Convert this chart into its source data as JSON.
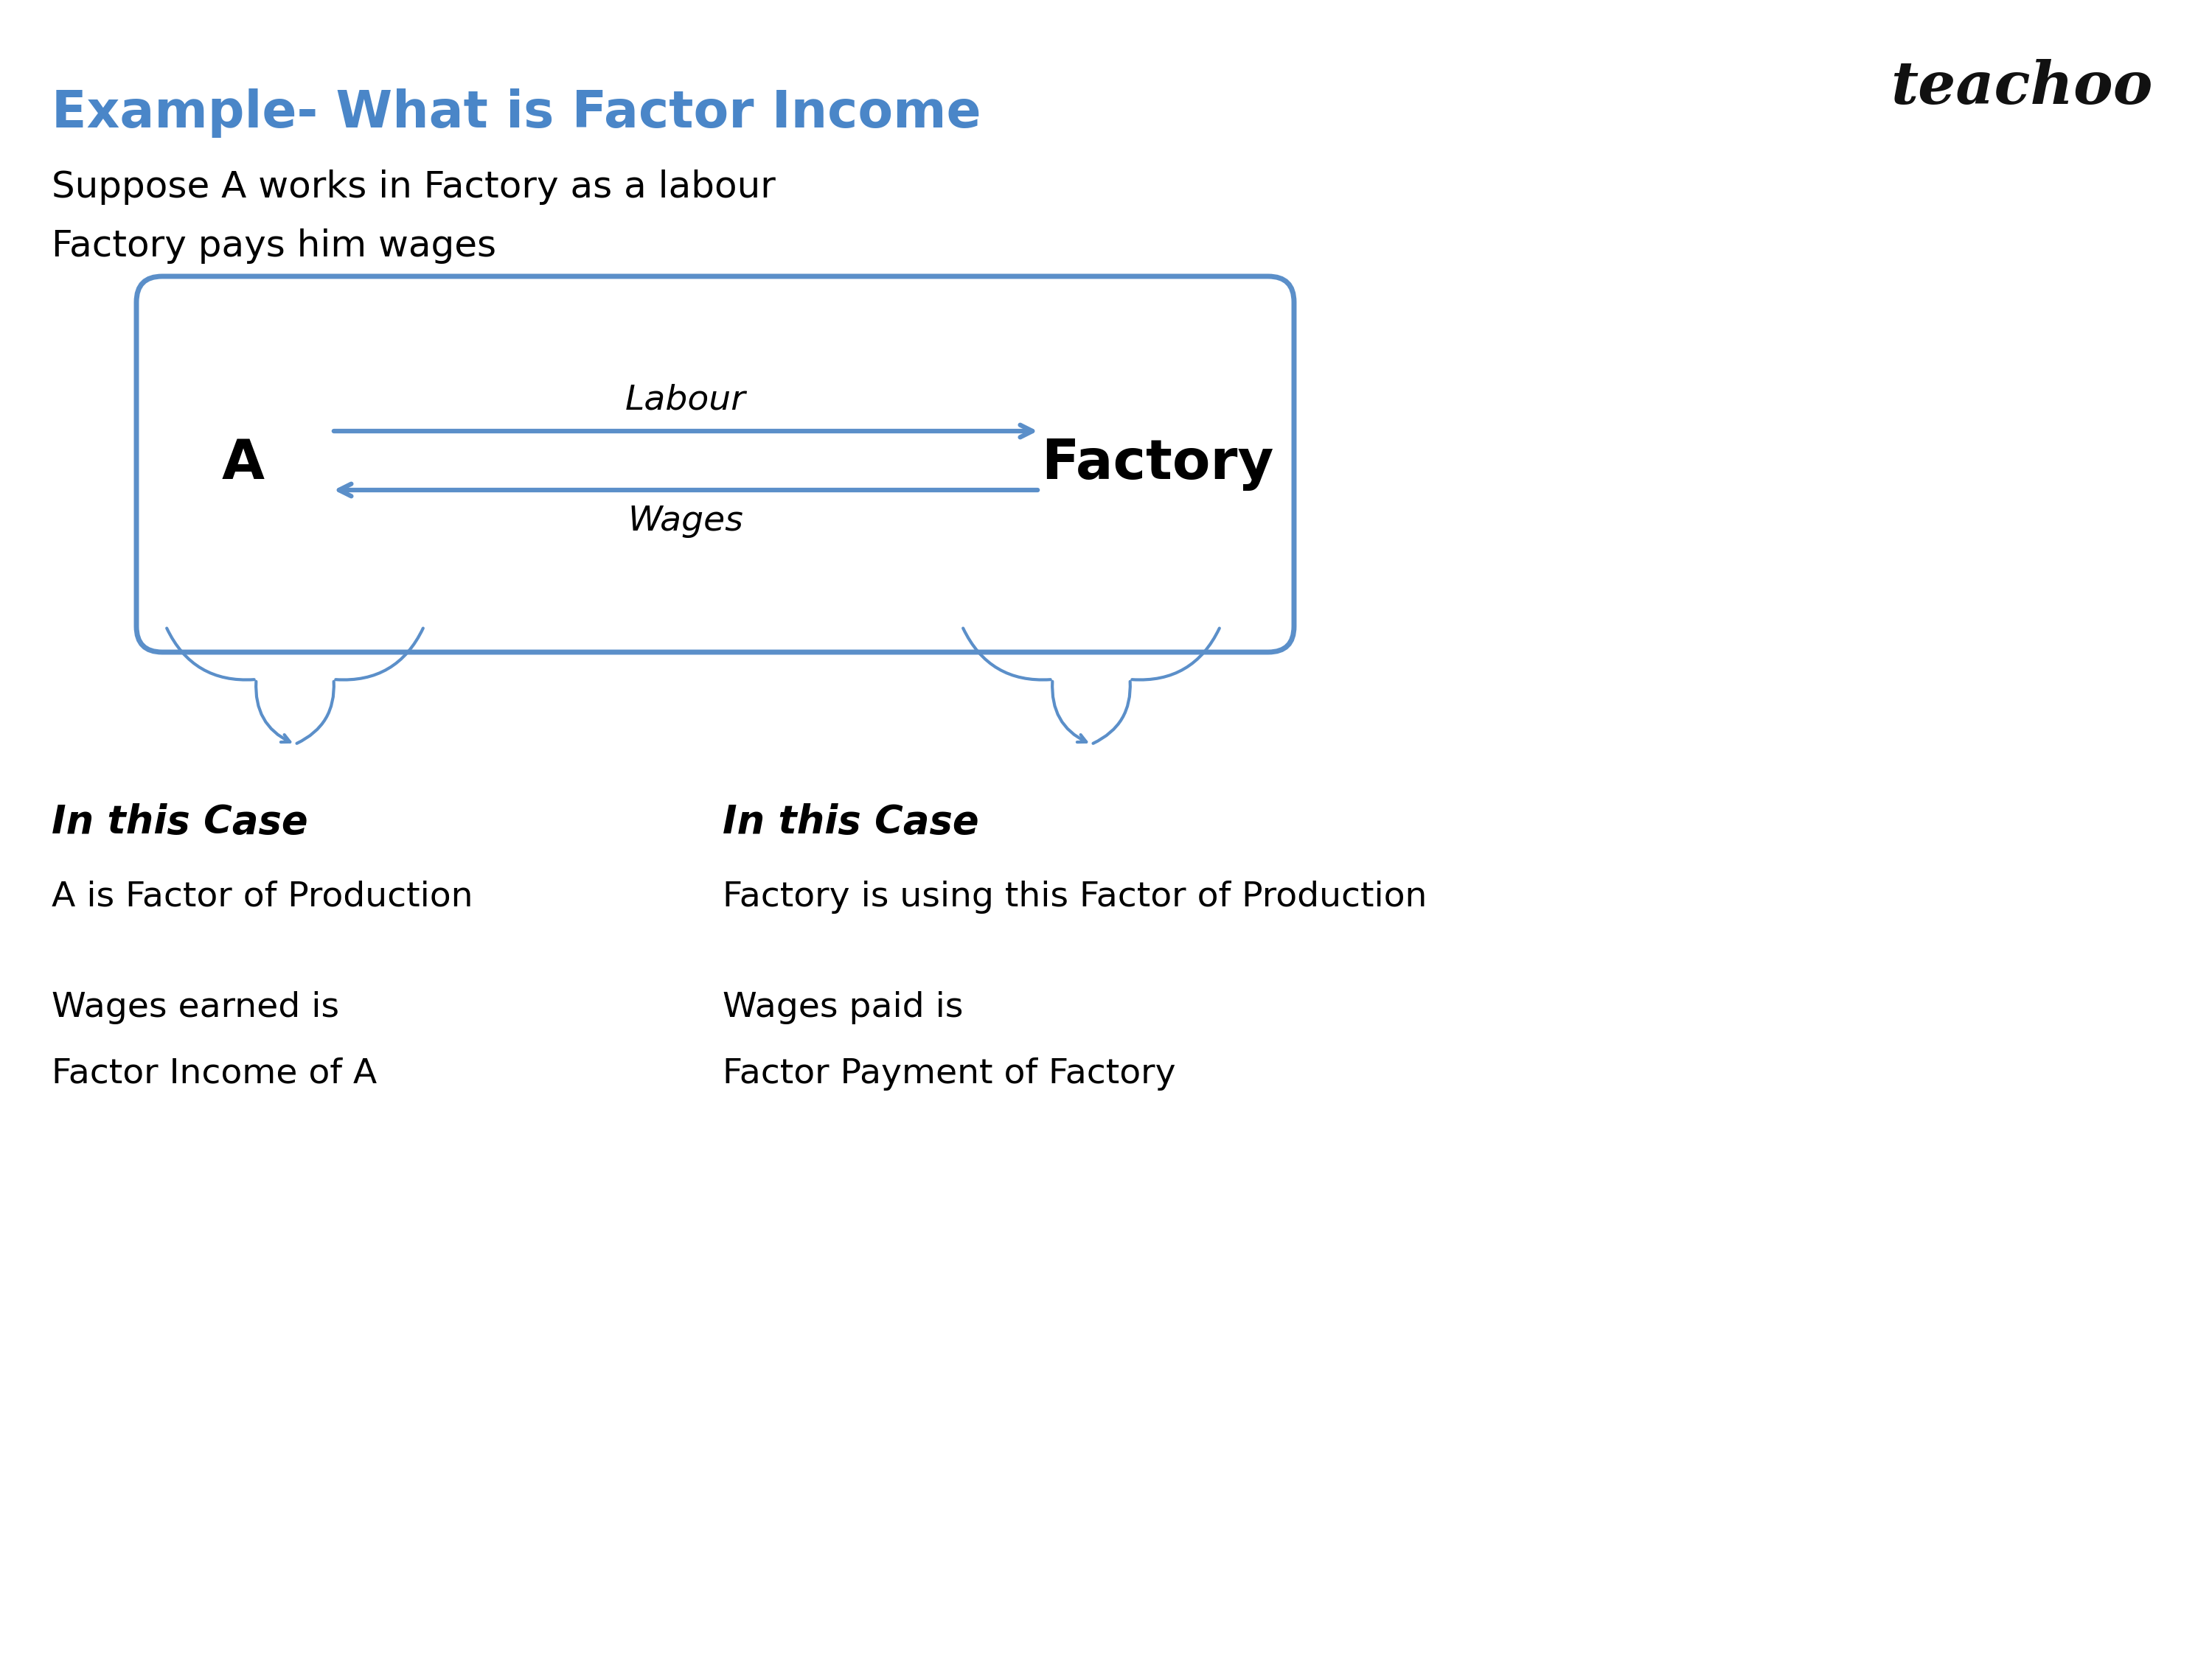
{
  "title": "Example- What is Factor Income",
  "title_color": "#4A86C8",
  "subtitle1": "Suppose A works in Factory as a labour",
  "subtitle2": "Factory pays him wages",
  "box_color": "#5B8FC9",
  "box_bg": "white",
  "left_label": "A",
  "right_label": "Factory",
  "arrow_top_label": "Labour",
  "arrow_bottom_label": "Wages",
  "left_case_title": "In this Case",
  "left_case_line1": "A is Factor of Production",
  "left_case_line2": "Wages earned is",
  "left_case_line3": "Factor Income of A",
  "right_case_title": "In this Case",
  "right_case_line1": "Factory is using this Factor of Production",
  "right_case_line2": "Wages paid is",
  "right_case_line3": "Factor Payment of Factory",
  "teachoo_text": "teachoo",
  "teachoo_color": "#111111",
  "bg_color": "white"
}
